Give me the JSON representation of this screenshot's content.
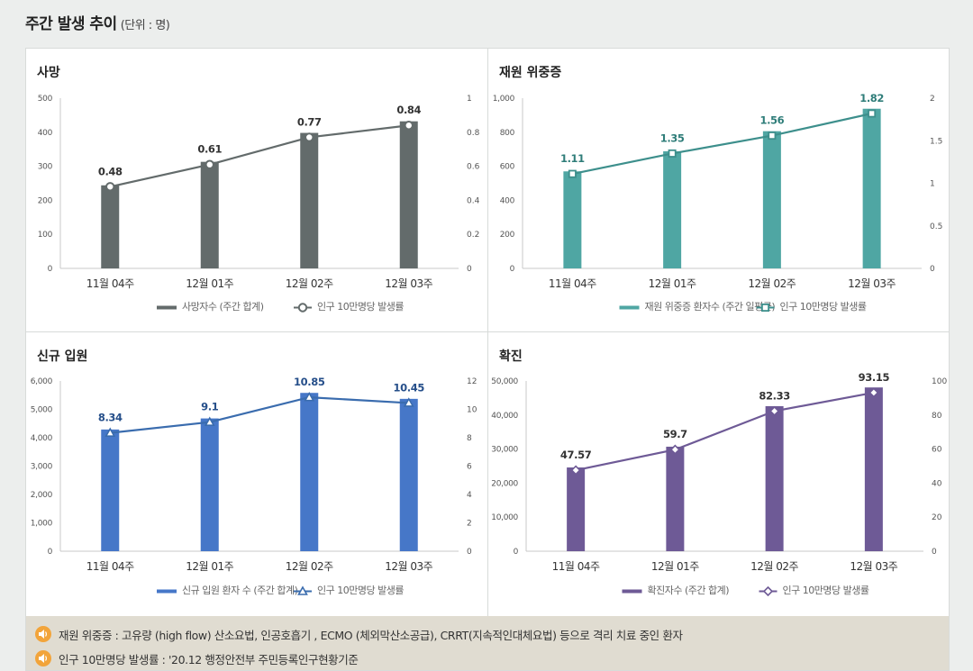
{
  "page": {
    "title": "주간 발생 추이",
    "unit": "(단위 : 명)"
  },
  "chart_data": [
    {
      "id": "deaths",
      "type": "bar",
      "title": "사망",
      "categories": [
        "11월 04주",
        "12월 01주",
        "12월 02주",
        "12월 03주"
      ],
      "bar_color": "#636b6b",
      "line_color": "#636b6b",
      "label_color": "#333333",
      "marker": "circle",
      "series": [
        {
          "name": "사망자수 (주간 합계)",
          "axis": "left",
          "values": [
            244,
            313,
            398,
            432
          ]
        },
        {
          "name": "인구 10만명당 발생률",
          "axis": "right",
          "values": [
            0.48,
            0.61,
            0.77,
            0.84
          ]
        }
      ],
      "left_axis": {
        "ticks": [
          "0",
          "100",
          "200",
          "300",
          "400",
          "500"
        ],
        "max": 500
      },
      "right_axis": {
        "ticks": [
          "0",
          "0.2",
          "0.4",
          "0.6",
          "0.8",
          "1"
        ],
        "max": 1
      }
    },
    {
      "id": "severe",
      "type": "bar",
      "title": "재원 위중증",
      "categories": [
        "11월 04주",
        "12월 01주",
        "12월 02주",
        "12월 03주"
      ],
      "bar_color": "#4fa6a3",
      "line_color": "#3d8f8c",
      "label_color": "#2f7d79",
      "marker": "square",
      "series": [
        {
          "name": "재원 위중증 환자수 (주간 일평균)",
          "axis": "left",
          "values": [
            570,
            688,
            806,
            938
          ]
        },
        {
          "name": "인구 10만명당 발생률",
          "axis": "right",
          "values": [
            1.11,
            1.35,
            1.56,
            1.82
          ]
        }
      ],
      "left_axis": {
        "ticks": [
          "0",
          "200",
          "400",
          "600",
          "800",
          "1,000"
        ],
        "max": 1000
      },
      "right_axis": {
        "ticks": [
          "0",
          "0.5",
          "1",
          "1.5",
          "2"
        ],
        "max": 2
      }
    },
    {
      "id": "admissions",
      "type": "bar",
      "title": "신규 입원",
      "categories": [
        "11월 04주",
        "12월 01주",
        "12월 02주",
        "12월 03주"
      ],
      "bar_color": "#4677c8",
      "line_color": "#3a6cae",
      "label_color": "#264f8a",
      "marker": "triangle",
      "series": [
        {
          "name": "신규 입원 환자 수 (주간 합계)",
          "axis": "left",
          "values": [
            4290,
            4680,
            5580,
            5370
          ]
        },
        {
          "name": "인구 10만명당 발생률",
          "axis": "right",
          "values": [
            8.34,
            9.1,
            10.85,
            10.45
          ]
        }
      ],
      "left_axis": {
        "ticks": [
          "0",
          "1,000",
          "2,000",
          "3,000",
          "4,000",
          "5,000",
          "6,000"
        ],
        "max": 6000
      },
      "right_axis": {
        "ticks": [
          "0",
          "2",
          "4",
          "6",
          "8",
          "10",
          "12"
        ],
        "max": 12
      }
    },
    {
      "id": "confirmed",
      "type": "bar",
      "title": "확진",
      "categories": [
        "11월 04주",
        "12월 01주",
        "12월 02주",
        "12월 03주"
      ],
      "bar_color": "#6e5a96",
      "line_color": "#6e5a96",
      "label_color": "#333333",
      "marker": "diamond",
      "series": [
        {
          "name": "확진자수 (주간 합계)",
          "axis": "left",
          "values": [
            24600,
            30700,
            42600,
            48100
          ]
        },
        {
          "name": "인구 10만명당 발생률",
          "axis": "right",
          "values": [
            47.57,
            59.7,
            82.33,
            93.15
          ]
        }
      ],
      "left_axis": {
        "ticks": [
          "0",
          "10,000",
          "20,000",
          "30,000",
          "40,000",
          "50,000"
        ],
        "max": 50000
      },
      "right_axis": {
        "ticks": [
          "0",
          "20",
          "40",
          "60",
          "80",
          "100"
        ],
        "max": 100
      }
    }
  ],
  "notes": [
    "재원 위중증 : 고유량 (high flow) 산소요법, 인공호흡기 , ECMO (체외막산소공급), CRRT(지속적인대체요법) 등으로 격리 치료 중인 환자",
    "인구 10만명당 발생률 : '20.12 행정안전부 주민등록인구현황기준"
  ],
  "icons": {
    "note": "speaker-icon"
  }
}
